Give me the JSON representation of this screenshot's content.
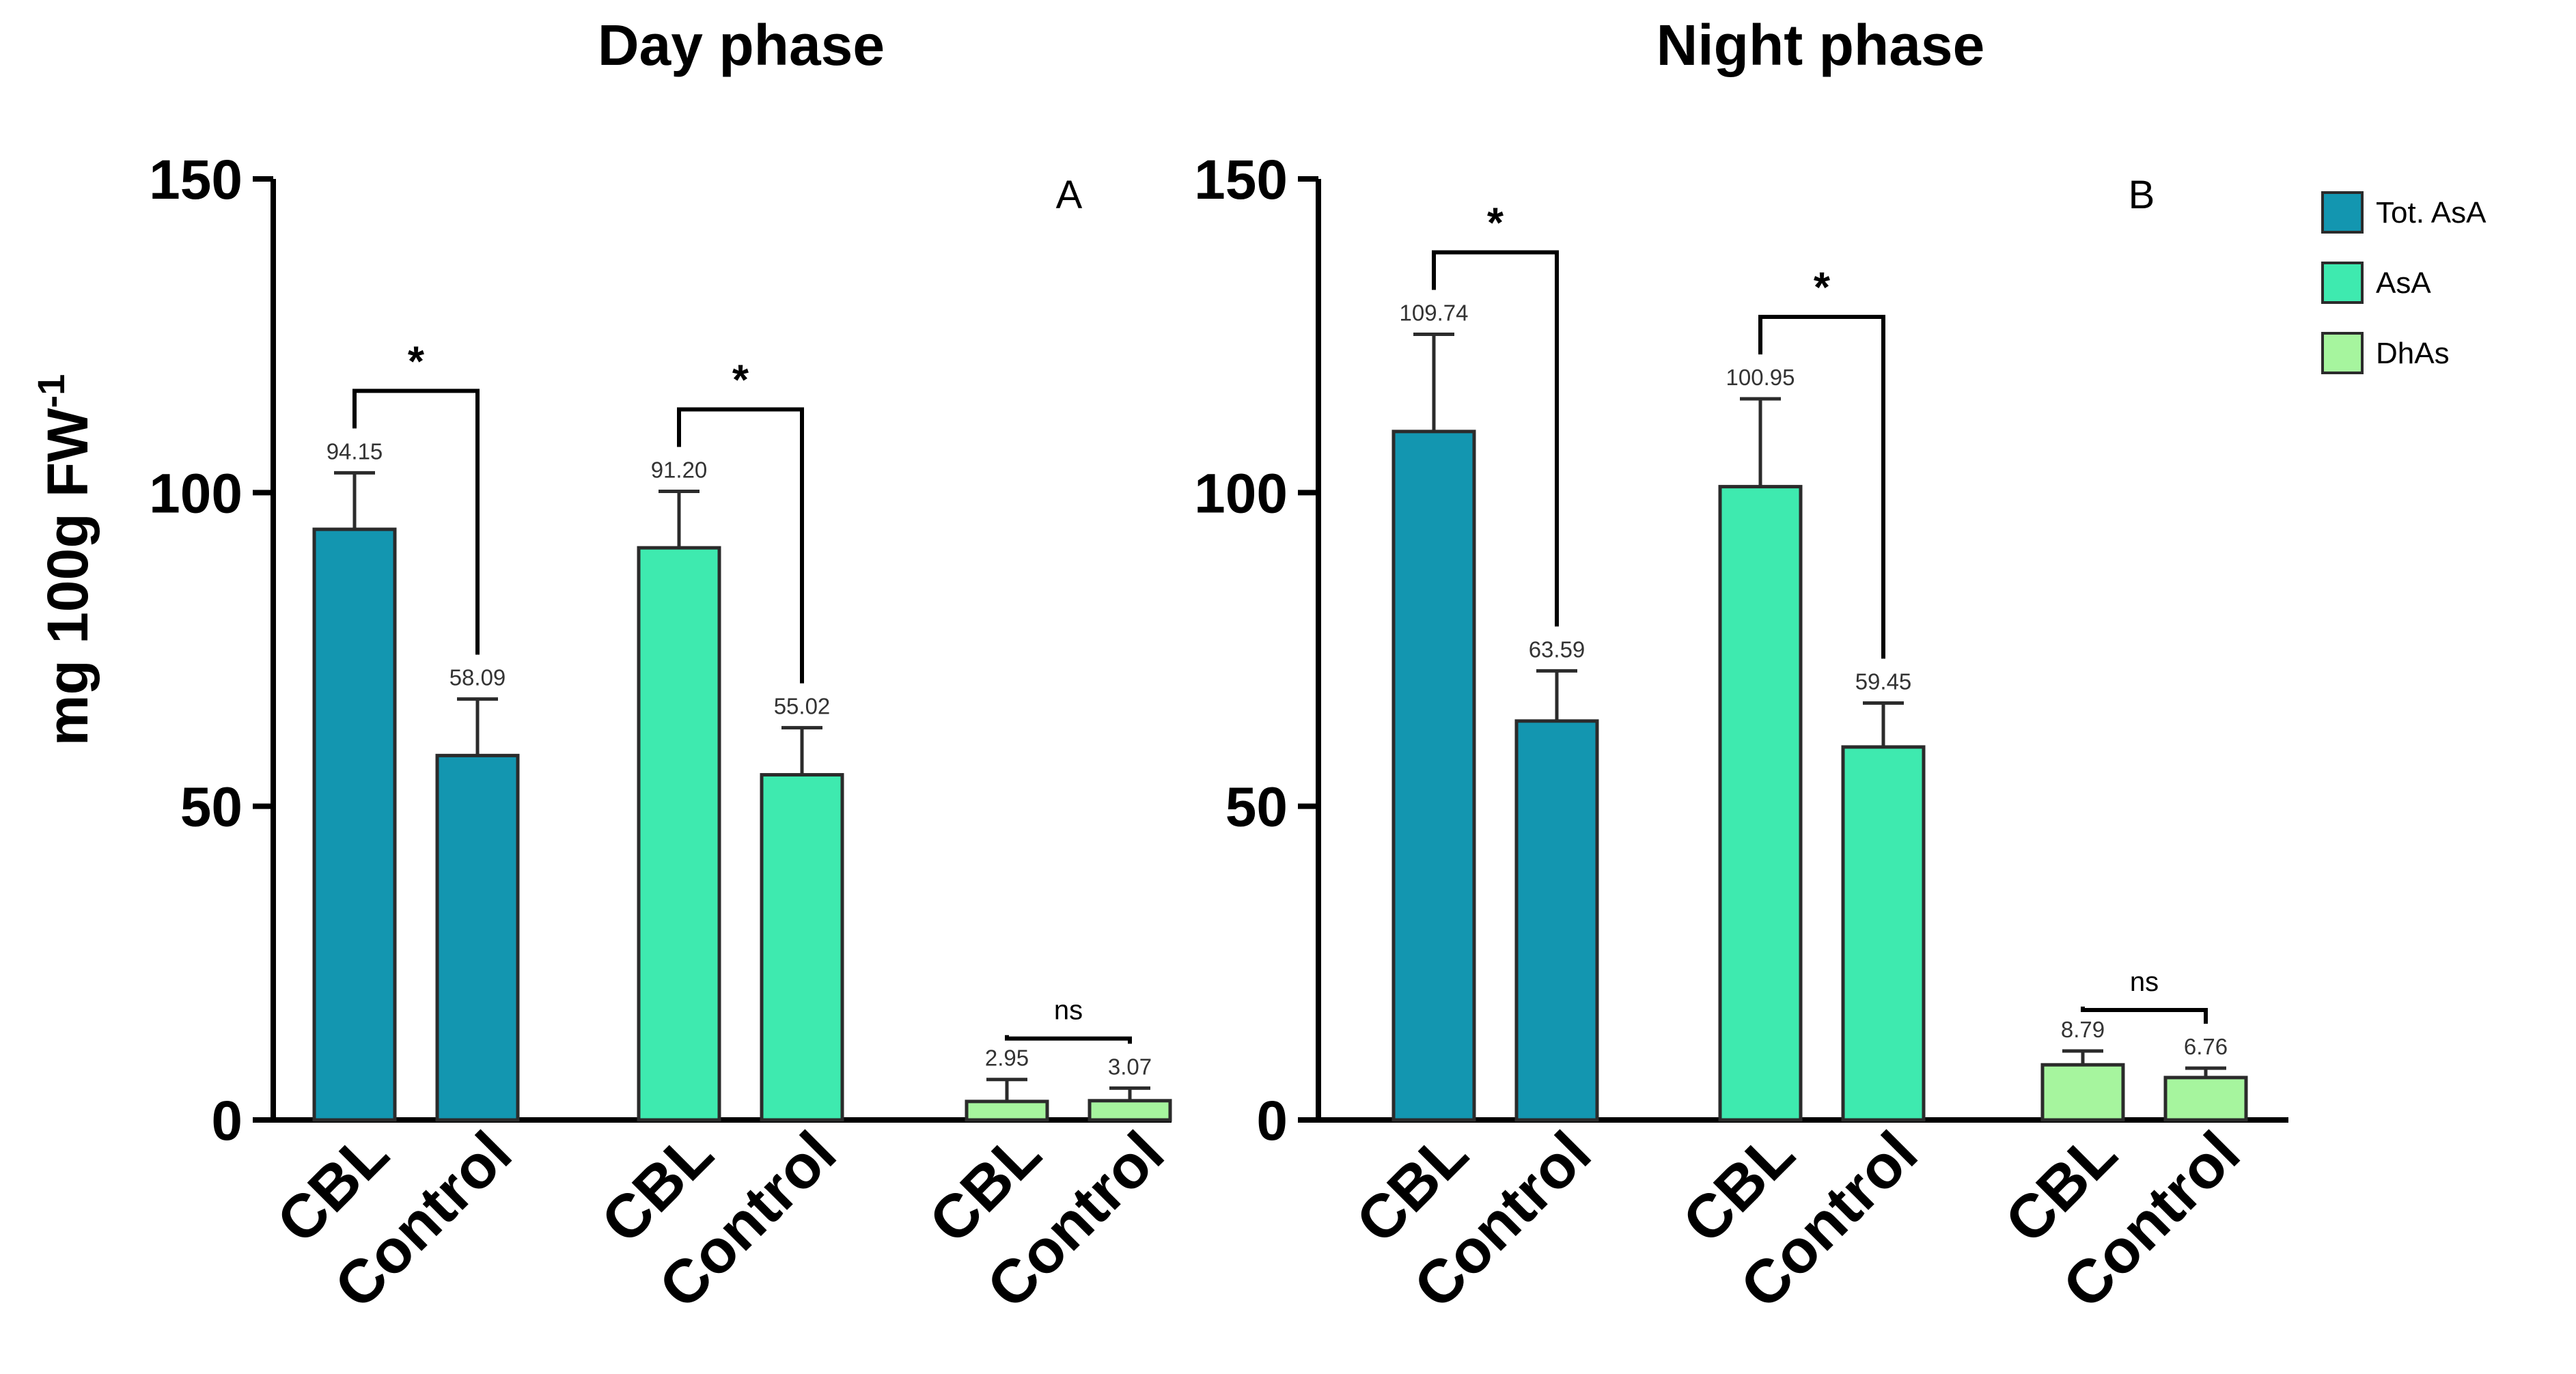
{
  "chart_data": [
    {
      "type": "bar",
      "title": "Day phase",
      "panel_letter": "A",
      "ylabel": "mg 100g FW",
      "ylabel_superscript": "-1",
      "ylim": [
        0,
        150
      ],
      "yticks": [
        "0",
        "50",
        "100",
        "150"
      ],
      "groups": [
        {
          "series": "Tot. AsA",
          "categories": [
            "CBL",
            "Control"
          ],
          "values": [
            94.15,
            58.09
          ],
          "errors": [
            9,
            9
          ],
          "labels": [
            "94.15",
            "58.09"
          ],
          "significance": "*"
        },
        {
          "series": "AsA",
          "categories": [
            "CBL",
            "Control"
          ],
          "values": [
            91.2,
            55.02
          ],
          "errors": [
            9,
            7.5
          ],
          "labels": [
            "91.20",
            "55.02"
          ],
          "significance": "*"
        },
        {
          "series": "DhAs",
          "categories": [
            "CBL",
            "Control"
          ],
          "values": [
            2.95,
            3.07
          ],
          "errors": [
            3.5,
            2
          ],
          "labels": [
            "2.95",
            "3.07"
          ],
          "significance": "ns"
        }
      ]
    },
    {
      "type": "bar",
      "title": "Night phase",
      "panel_letter": "B",
      "ylabel": "",
      "ylim": [
        0,
        150
      ],
      "yticks": [
        "0",
        "50",
        "100",
        "150"
      ],
      "groups": [
        {
          "series": "Tot. AsA",
          "categories": [
            "CBL",
            "Control"
          ],
          "values": [
            109.74,
            63.59
          ],
          "errors": [
            15.5,
            8
          ],
          "labels": [
            "109.74",
            "63.59"
          ],
          "significance": "*"
        },
        {
          "series": "AsA",
          "categories": [
            "CBL",
            "Control"
          ],
          "values": [
            100.95,
            59.45
          ],
          "errors": [
            14,
            7
          ],
          "labels": [
            "100.95",
            "59.45"
          ],
          "significance": "*"
        },
        {
          "series": "DhAs",
          "categories": [
            "CBL",
            "Control"
          ],
          "values": [
            8.79,
            6.76
          ],
          "errors": [
            2.2,
            1.5
          ],
          "labels": [
            "8.79",
            "6.76"
          ],
          "significance": "ns"
        }
      ]
    }
  ],
  "legend": {
    "placement": "top-right",
    "entries": [
      {
        "name": "Tot. AsA",
        "color": "#1396B0"
      },
      {
        "name": "AsA",
        "color": "#3EEAAF"
      },
      {
        "name": "DhAs",
        "color": "#A6F59E"
      }
    ]
  }
}
